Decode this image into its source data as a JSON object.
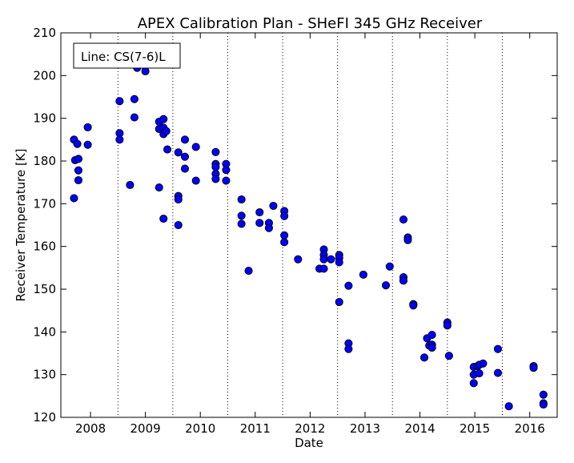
{
  "chart_data": {
    "type": "scatter",
    "title": "APEX Calibration Plan - SHeFI 345 GHz Receiver",
    "xlabel": "Date",
    "ylabel": "Receiver Temperature [K]",
    "legend": {
      "text": "Line: CS(7-6)L",
      "placement": "top-left"
    },
    "xlim": [
      2007.46,
      2016.5
    ],
    "ylim": [
      120,
      210
    ],
    "grid": "vertical-dotted",
    "vlines": [
      2008.5,
      2009.5,
      2010.5,
      2011.5,
      2012.5,
      2013.5,
      2014.5,
      2015.5
    ],
    "x_ticks": [
      {
        "value": 2008,
        "label": "2008"
      },
      {
        "value": 2009,
        "label": "2009"
      },
      {
        "value": 2010,
        "label": "2010"
      },
      {
        "value": 2011,
        "label": "2011"
      },
      {
        "value": 2012,
        "label": "2012"
      },
      {
        "value": 2013,
        "label": "2013"
      },
      {
        "value": 2014,
        "label": "2014"
      },
      {
        "value": 2015,
        "label": "2015"
      },
      {
        "value": 2016,
        "label": "2016"
      }
    ],
    "y_ticks": [
      {
        "value": 120,
        "label": "120"
      },
      {
        "value": 130,
        "label": "130"
      },
      {
        "value": 140,
        "label": "140"
      },
      {
        "value": 150,
        "label": "150"
      },
      {
        "value": 160,
        "label": "160"
      },
      {
        "value": 170,
        "label": "170"
      },
      {
        "value": 180,
        "label": "180"
      },
      {
        "value": 190,
        "label": "190"
      },
      {
        "value": 200,
        "label": "200"
      },
      {
        "value": 210,
        "label": "210"
      }
    ],
    "marker_color": "#0000ff",
    "points": [
      [
        2007.7,
        185.0
      ],
      [
        2007.72,
        180.2
      ],
      [
        2007.7,
        171.3
      ],
      [
        2007.76,
        184.0
      ],
      [
        2007.78,
        180.5
      ],
      [
        2007.78,
        177.8
      ],
      [
        2007.78,
        175.5
      ],
      [
        2007.95,
        187.9
      ],
      [
        2007.95,
        183.8
      ],
      [
        2008.53,
        194.0
      ],
      [
        2008.53,
        186.5
      ],
      [
        2008.53,
        185.0
      ],
      [
        2008.72,
        174.4
      ],
      [
        2008.8,
        194.5
      ],
      [
        2008.8,
        190.2
      ],
      [
        2008.85,
        201.8
      ],
      [
        2009.0,
        201.0
      ],
      [
        2009.25,
        173.8
      ],
      [
        2009.25,
        189.2
      ],
      [
        2009.25,
        187.5
      ],
      [
        2009.33,
        189.8
      ],
      [
        2009.33,
        187.8
      ],
      [
        2009.33,
        186.3
      ],
      [
        2009.38,
        187.0
      ],
      [
        2009.33,
        166.5
      ],
      [
        2009.4,
        182.7
      ],
      [
        2009.6,
        182.0
      ],
      [
        2009.6,
        171.8
      ],
      [
        2009.6,
        171.0
      ],
      [
        2009.6,
        165.0
      ],
      [
        2009.72,
        185.0
      ],
      [
        2009.72,
        181.0
      ],
      [
        2009.72,
        178.2
      ],
      [
        2009.92,
        183.3
      ],
      [
        2009.92,
        175.4
      ],
      [
        2010.28,
        182.1
      ],
      [
        2010.28,
        179.3
      ],
      [
        2010.28,
        178.6
      ],
      [
        2010.28,
        177.0
      ],
      [
        2010.28,
        175.8
      ],
      [
        2010.47,
        179.3
      ],
      [
        2010.47,
        177.9
      ],
      [
        2010.47,
        175.4
      ],
      [
        2010.75,
        171.0
      ],
      [
        2010.75,
        167.2
      ],
      [
        2010.75,
        165.3
      ],
      [
        2010.88,
        154.3
      ],
      [
        2011.08,
        168.0
      ],
      [
        2011.08,
        165.5
      ],
      [
        2011.25,
        165.5
      ],
      [
        2011.25,
        164.3
      ],
      [
        2011.33,
        169.5
      ],
      [
        2011.53,
        168.3
      ],
      [
        2011.53,
        167.1
      ],
      [
        2011.53,
        162.6
      ],
      [
        2011.53,
        161.0
      ],
      [
        2011.78,
        157.0
      ],
      [
        2012.17,
        154.8
      ],
      [
        2012.25,
        159.3
      ],
      [
        2012.25,
        158.0
      ],
      [
        2012.25,
        157.0
      ],
      [
        2012.25,
        154.8
      ],
      [
        2012.38,
        157.0
      ],
      [
        2012.53,
        158.0
      ],
      [
        2012.53,
        157.3
      ],
      [
        2012.53,
        156.3
      ],
      [
        2012.53,
        147.0
      ],
      [
        2012.7,
        150.8
      ],
      [
        2012.7,
        137.3
      ],
      [
        2012.7,
        136.0
      ],
      [
        2012.97,
        153.4
      ],
      [
        2013.38,
        150.9
      ],
      [
        2013.45,
        155.3
      ],
      [
        2013.7,
        166.3
      ],
      [
        2013.7,
        152.8
      ],
      [
        2013.7,
        152.0
      ],
      [
        2013.78,
        162.1
      ],
      [
        2013.78,
        161.5
      ],
      [
        2013.88,
        146.5
      ],
      [
        2013.88,
        146.2
      ],
      [
        2014.08,
        134.0
      ],
      [
        2014.13,
        138.5
      ],
      [
        2014.17,
        136.8
      ],
      [
        2014.22,
        139.3
      ],
      [
        2014.22,
        137.0
      ],
      [
        2014.22,
        136.3
      ],
      [
        2014.5,
        142.2
      ],
      [
        2014.5,
        141.5
      ],
      [
        2014.53,
        134.4
      ],
      [
        2014.98,
        131.8
      ],
      [
        2014.98,
        130.0
      ],
      [
        2014.98,
        128.0
      ],
      [
        2015.05,
        132.0
      ],
      [
        2015.08,
        132.3
      ],
      [
        2015.08,
        130.3
      ],
      [
        2015.15,
        132.6
      ],
      [
        2015.42,
        136.0
      ],
      [
        2015.42,
        130.4
      ],
      [
        2015.62,
        122.6
      ],
      [
        2016.07,
        132.0
      ],
      [
        2016.07,
        131.6
      ],
      [
        2016.25,
        125.3
      ],
      [
        2016.25,
        123.3
      ],
      [
        2016.25,
        123.0
      ]
    ]
  }
}
